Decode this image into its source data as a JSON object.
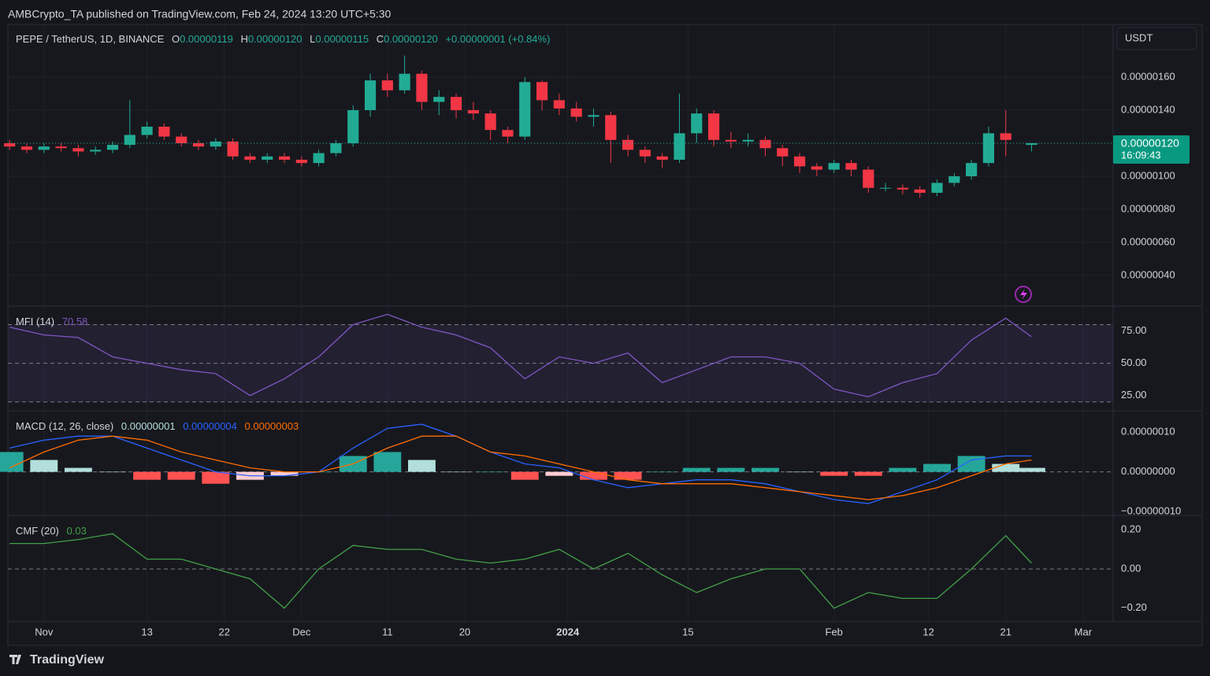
{
  "header": {
    "publisher": "AMBCrypto_TA published on TradingView.com, Feb 24, 2024 13:20 UTC+5:30"
  },
  "footer": {
    "brand": "TradingView"
  },
  "chart_data": [
    {
      "type": "candlestick",
      "title": "PEPE / TetherUS, 1D, BINANCE",
      "legend": {
        "open_label": "O",
        "high_label": "H",
        "low_label": "L",
        "close_label": "C"
      },
      "value_labels": [
        "0.00000119",
        "0.00000120",
        "0.00000115",
        "0.00000120"
      ],
      "change": "+0.00000001 (+0.84%)",
      "currency": "USDT",
      "countdown": "16:09:43",
      "up_color": "#22ab94",
      "down_color": "#f23645",
      "grid": true,
      "xlim": [
        -0.2,
        128.5
      ],
      "xticks": [
        {
          "value": 4,
          "label": "Nov"
        },
        {
          "value": 16,
          "label": "13"
        },
        {
          "value": 25,
          "label": "22"
        },
        {
          "value": 34,
          "label": "Dec"
        },
        {
          "value": 44,
          "label": "11"
        },
        {
          "value": 53,
          "label": "20"
        },
        {
          "value": 65,
          "label": "2024"
        },
        {
          "value": 79,
          "label": "15"
        },
        {
          "value": 96,
          "label": "Feb"
        },
        {
          "value": 107,
          "label": "12"
        },
        {
          "value": 116,
          "label": "21"
        },
        {
          "value": 125,
          "label": "Mar"
        }
      ],
      "ylim": [
        2.19e-07,
        1.914e-06
      ],
      "yticks": [
        {
          "value": 4e-07,
          "label": "0.00000040"
        },
        {
          "value": 6e-07,
          "label": "0.00000060"
        },
        {
          "value": 8e-07,
          "label": "0.00000080"
        },
        {
          "value": 1e-06,
          "label": "0.00000100"
        },
        {
          "value": 1.2e-06,
          "label": "0.00000120"
        },
        {
          "value": 1.4e-06,
          "label": "0.00000140"
        },
        {
          "value": 1.6e-06,
          "label": "0.00000160"
        }
      ],
      "ohlc": [
        [
          0,
          1.2e-06,
          1.22e-06,
          1.16e-06,
          1.18e-06
        ],
        [
          2,
          1.18e-06,
          1.2e-06,
          1.14e-06,
          1.16e-06
        ],
        [
          4,
          1.16e-06,
          1.2e-06,
          1.14e-06,
          1.18e-06
        ],
        [
          6,
          1.18e-06,
          1.2e-06,
          1.15e-06,
          1.17e-06
        ],
        [
          8,
          1.17e-06,
          1.19e-06,
          1.12e-06,
          1.15e-06
        ],
        [
          10,
          1.15e-06,
          1.18e-06,
          1.13e-06,
          1.16e-06
        ],
        [
          12,
          1.16e-06,
          1.21e-06,
          1.14e-06,
          1.19e-06
        ],
        [
          14,
          1.19e-06,
          1.46e-06,
          1.17e-06,
          1.25e-06
        ],
        [
          16,
          1.25e-06,
          1.33e-06,
          1.23e-06,
          1.3e-06
        ],
        [
          18,
          1.3e-06,
          1.32e-06,
          1.22e-06,
          1.24e-06
        ],
        [
          20,
          1.24e-06,
          1.26e-06,
          1.18e-06,
          1.2e-06
        ],
        [
          22,
          1.2e-06,
          1.22e-06,
          1.16e-06,
          1.18e-06
        ],
        [
          24,
          1.18e-06,
          1.23e-06,
          1.16e-06,
          1.21e-06
        ],
        [
          26,
          1.21e-06,
          1.23e-06,
          1.1e-06,
          1.12e-06
        ],
        [
          28,
          1.12e-06,
          1.14e-06,
          1.08e-06,
          1.1e-06
        ],
        [
          30,
          1.1e-06,
          1.14e-06,
          1.08e-06,
          1.12e-06
        ],
        [
          32,
          1.12e-06,
          1.14e-06,
          1.08e-06,
          1.1e-06
        ],
        [
          34,
          1.1e-06,
          1.12e-06,
          1.06e-06,
          1.08e-06
        ],
        [
          36,
          1.08e-06,
          1.16e-06,
          1.06e-06,
          1.14e-06
        ],
        [
          38,
          1.14e-06,
          1.22e-06,
          1.12e-06,
          1.2e-06
        ],
        [
          40,
          1.2e-06,
          1.43e-06,
          1.18e-06,
          1.4e-06
        ],
        [
          42,
          1.4e-06,
          1.62e-06,
          1.36e-06,
          1.58e-06
        ],
        [
          44,
          1.58e-06,
          1.62e-06,
          1.48e-06,
          1.52e-06
        ],
        [
          46,
          1.52e-06,
          1.73e-06,
          1.5e-06,
          1.62e-06
        ],
        [
          48,
          1.62e-06,
          1.64e-06,
          1.4e-06,
          1.45e-06
        ],
        [
          50,
          1.45e-06,
          1.52e-06,
          1.37e-06,
          1.48e-06
        ],
        [
          52,
          1.48e-06,
          1.5e-06,
          1.35e-06,
          1.4e-06
        ],
        [
          54,
          1.4e-06,
          1.45e-06,
          1.34e-06,
          1.38e-06
        ],
        [
          56,
          1.38e-06,
          1.4e-06,
          1.22e-06,
          1.28e-06
        ],
        [
          58,
          1.28e-06,
          1.3e-06,
          1.2e-06,
          1.24e-06
        ],
        [
          60,
          1.24e-06,
          1.6e-06,
          1.22e-06,
          1.57e-06
        ],
        [
          62,
          1.57e-06,
          1.58e-06,
          1.4e-06,
          1.46e-06
        ],
        [
          64,
          1.46e-06,
          1.5e-06,
          1.37e-06,
          1.41e-06
        ],
        [
          66,
          1.41e-06,
          1.45e-06,
          1.33e-06,
          1.36e-06
        ],
        [
          68,
          1.36e-06,
          1.41e-06,
          1.3e-06,
          1.37e-06
        ],
        [
          70,
          1.37e-06,
          1.39e-06,
          1.08e-06,
          1.22e-06
        ],
        [
          72,
          1.22e-06,
          1.25e-06,
          1.12e-06,
          1.16e-06
        ],
        [
          74,
          1.16e-06,
          1.18e-06,
          1.08e-06,
          1.12e-06
        ],
        [
          76,
          1.12e-06,
          1.14e-06,
          1.05e-06,
          1.1e-06
        ],
        [
          78,
          1.1e-06,
          1.5e-06,
          1.08e-06,
          1.26e-06
        ],
        [
          80,
          1.26e-06,
          1.41e-06,
          1.2e-06,
          1.38e-06
        ],
        [
          82,
          1.38e-06,
          1.4e-06,
          1.18e-06,
          1.22e-06
        ],
        [
          84,
          1.22e-06,
          1.27e-06,
          1.17e-06,
          1.21e-06
        ],
        [
          86,
          1.21e-06,
          1.26e-06,
          1.18e-06,
          1.22e-06
        ],
        [
          88,
          1.22e-06,
          1.24e-06,
          1.12e-06,
          1.17e-06
        ],
        [
          90,
          1.17e-06,
          1.19e-06,
          1.06e-06,
          1.12e-06
        ],
        [
          92,
          1.12e-06,
          1.14e-06,
          1.02e-06,
          1.06e-06
        ],
        [
          94,
          1.06e-06,
          1.08e-06,
          1e-06,
          1.04e-06
        ],
        [
          96,
          1.04e-06,
          1.1e-06,
          1.02e-06,
          1.08e-06
        ],
        [
          98,
          1.08e-06,
          1.1e-06,
          1e-06,
          1.04e-06
        ],
        [
          100,
          1.04e-06,
          1.06e-06,
          9e-07,
          9.3e-07
        ],
        [
          102,
          9.3e-07,
          9.6e-07,
          9.1e-07,
          9.3e-07
        ],
        [
          104,
          9.3e-07,
          9.5e-07,
          8.9e-07,
          9.2e-07
        ],
        [
          106,
          9.2e-07,
          9.4e-07,
          8.7e-07,
          9e-07
        ],
        [
          108,
          9e-07,
          9.8e-07,
          8.8e-07,
          9.6e-07
        ],
        [
          110,
          9.6e-07,
          1.02e-06,
          9.4e-07,
          1e-06
        ],
        [
          112,
          1e-06,
          1.1e-06,
          9.8e-07,
          1.08e-06
        ],
        [
          114,
          1.08e-06,
          1.3e-06,
          1.06e-06,
          1.26e-06
        ],
        [
          116,
          1.26e-06,
          1.4e-06,
          1.12e-06,
          1.22e-06
        ],
        [
          119,
          1.19e-06,
          1.2e-06,
          1.15e-06,
          1.2e-06
        ]
      ]
    },
    {
      "type": "line",
      "title": "MFI (14)",
      "color": "#7e57c2",
      "x": [
        0,
        4,
        8,
        12,
        16,
        20,
        24,
        28,
        32,
        36,
        40,
        44,
        48,
        52,
        56,
        60,
        64,
        68,
        72,
        76,
        80,
        84,
        88,
        92,
        96,
        100,
        104,
        108,
        112,
        116,
        119
      ],
      "values": [
        78,
        72,
        70,
        55,
        50,
        45,
        42,
        25,
        38,
        55,
        80,
        88,
        78,
        72,
        62,
        38,
        55,
        50,
        58,
        35,
        45,
        55,
        55,
        50,
        30,
        24,
        35,
        42,
        68,
        85,
        70.58
      ],
      "ylim": [
        13.75,
        93.75
      ],
      "yticks": [
        {
          "value": 25,
          "label": "25.00"
        },
        {
          "value": 50,
          "label": "50.00"
        },
        {
          "value": 75,
          "label": "75.00"
        }
      ],
      "hlines": [
        80,
        50,
        20
      ]
    },
    {
      "type": "macd",
      "title": "MACD (12, 26, close)",
      "x": [
        0,
        4,
        8,
        12,
        16,
        20,
        24,
        28,
        32,
        36,
        40,
        44,
        48,
        52,
        56,
        60,
        64,
        68,
        72,
        76,
        80,
        84,
        88,
        92,
        96,
        100,
        104,
        108,
        112,
        116,
        119
      ],
      "histogram": {
        "values": [
          5e-08,
          3e-08,
          1e-08,
          0,
          -2e-08,
          -2e-08,
          -3e-08,
          -2e-08,
          -1e-08,
          0,
          4e-08,
          5e-08,
          3e-08,
          0,
          0,
          -2e-08,
          -1e-08,
          -2e-08,
          -2e-08,
          0,
          1e-08,
          1e-08,
          1e-08,
          0,
          -1e-08,
          -1e-08,
          1e-08,
          2e-08,
          4e-08,
          2e-08,
          1e-08
        ],
        "value_labels": [
          null,
          null,
          null,
          null,
          null,
          null,
          null,
          null,
          null,
          null,
          null,
          null,
          null,
          null,
          null,
          null,
          null,
          null,
          null,
          null,
          null,
          null,
          null,
          null,
          null,
          null,
          null,
          null,
          null,
          null,
          "0.00000001"
        ]
      },
      "series": [
        {
          "color": "#2962ff",
          "values": [
            6e-08,
            8e-08,
            9e-08,
            9e-08,
            6e-08,
            3e-08,
            0,
            -1e-08,
            -1e-08,
            0,
            6e-08,
            1.1e-07,
            1.2e-07,
            9e-08,
            5e-08,
            2e-08,
            1e-08,
            -2e-08,
            -4e-08,
            -3e-08,
            -2e-08,
            -2e-08,
            -3e-08,
            -5e-08,
            -7e-08,
            -8e-08,
            -5e-08,
            -2e-08,
            3e-08,
            4e-08,
            4e-08
          ],
          "value_labels": [
            null,
            null,
            null,
            null,
            null,
            null,
            null,
            null,
            null,
            null,
            null,
            null,
            null,
            null,
            null,
            null,
            null,
            null,
            null,
            null,
            null,
            null,
            null,
            null,
            null,
            null,
            null,
            null,
            null,
            null,
            "0.00000004"
          ]
        },
        {
          "color": "#ff6d00",
          "values": [
            1e-08,
            5e-08,
            8e-08,
            9e-08,
            8e-08,
            5e-08,
            3e-08,
            1e-08,
            0,
            0,
            2e-08,
            6e-08,
            9e-08,
            9e-08,
            5e-08,
            4e-08,
            2e-08,
            0,
            -2e-08,
            -3e-08,
            -3e-08,
            -3e-08,
            -4e-08,
            -5e-08,
            -6e-08,
            -7e-08,
            -6e-08,
            -4e-08,
            -1e-08,
            2e-08,
            3e-08
          ],
          "value_labels": [
            null,
            null,
            null,
            null,
            null,
            null,
            null,
            null,
            null,
            null,
            null,
            null,
            null,
            null,
            null,
            null,
            null,
            null,
            null,
            null,
            null,
            null,
            null,
            null,
            null,
            null,
            null,
            null,
            null,
            null,
            "0.00000003"
          ]
        }
      ],
      "ylim": [
        -1.08e-07,
        1.52e-07
      ],
      "yticks": [
        {
          "value": -1e-07,
          "label": "−0.00000010"
        },
        {
          "value": 0,
          "label": "0.00000000"
        },
        {
          "value": 1e-07,
          "label": "0.00000010"
        }
      ],
      "hlines": [
        0
      ]
    },
    {
      "type": "line",
      "title": "CMF (20)",
      "color": "#43a047",
      "x": [
        0,
        4,
        8,
        12,
        16,
        20,
        24,
        28,
        32,
        36,
        40,
        44,
        48,
        52,
        56,
        60,
        64,
        68,
        72,
        76,
        80,
        84,
        88,
        92,
        96,
        100,
        104,
        108,
        112,
        116,
        119
      ],
      "values": [
        0.13,
        0.13,
        0.15,
        0.18,
        0.05,
        0.05,
        0.0,
        -0.05,
        -0.2,
        0.0,
        0.12,
        0.1,
        0.1,
        0.05,
        0.03,
        0.05,
        0.1,
        0.0,
        0.08,
        -0.03,
        -0.12,
        -0.05,
        0.0,
        0.0,
        -0.2,
        -0.12,
        -0.15,
        -0.15,
        0.0,
        0.17,
        0.03
      ],
      "ylim": [
        -0.265,
        0.269
      ],
      "yticks": [
        {
          "value": -0.2,
          "label": "−0.20"
        },
        {
          "value": 0,
          "label": "0.00"
        },
        {
          "value": 0.2,
          "label": "0.20"
        }
      ],
      "hlines": [
        0
      ]
    }
  ]
}
